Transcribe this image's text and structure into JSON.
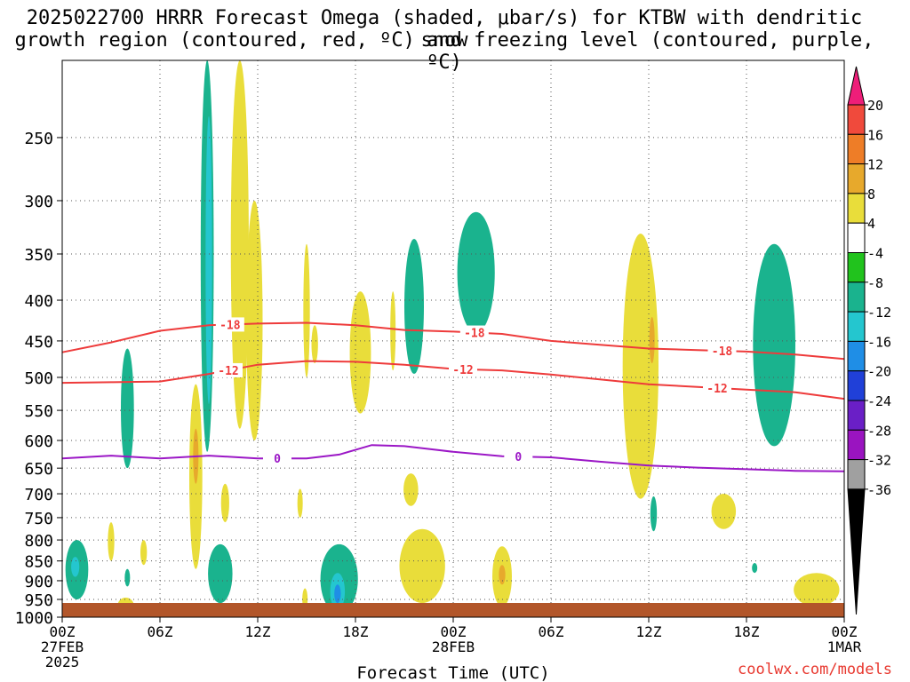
{
  "chart_data": {
    "type": "heatmap",
    "title_line1": "2025022700 HRRR Forecast Omega (shaded, μbar/s) for KTBW with dendritic snow",
    "title_line2": "growth region (contoured, red, ºC) and freezing level (contoured, purple, ºC)",
    "xlabel": "Forecast Time (UTC)",
    "credit": "coolwx.com/models",
    "x_range_hours": [
      0,
      48
    ],
    "y_pressure_range": [
      1000,
      200
    ],
    "y_ticks": [
      250,
      300,
      350,
      400,
      450,
      500,
      550,
      600,
      650,
      700,
      750,
      800,
      850,
      900,
      950,
      1000
    ],
    "x_ticks": [
      {
        "hour": 0,
        "lines": [
          "00Z",
          "27FEB",
          "2025"
        ]
      },
      {
        "hour": 6,
        "lines": [
          "06Z"
        ]
      },
      {
        "hour": 12,
        "lines": [
          "12Z"
        ]
      },
      {
        "hour": 18,
        "lines": [
          "18Z"
        ]
      },
      {
        "hour": 24,
        "lines": [
          "00Z",
          "28FEB"
        ]
      },
      {
        "hour": 30,
        "lines": [
          "06Z"
        ]
      },
      {
        "hour": 36,
        "lines": [
          "12Z"
        ]
      },
      {
        "hour": 42,
        "lines": [
          "18Z"
        ]
      },
      {
        "hour": 48,
        "lines": [
          "00Z",
          "1MAR"
        ]
      }
    ],
    "colorbar": {
      "labels": [
        "20",
        "16",
        "12",
        "8",
        "4",
        "-4",
        "-8",
        "-12",
        "-16",
        "-20",
        "-24",
        "-28",
        "-32",
        "-36"
      ],
      "colors": [
        "#ee1e79",
        "#f04a3c",
        "#ee7d27",
        "#e7a92c",
        "#e9dd3a",
        "#ffffff",
        "#21c31d",
        "#1ab38e",
        "#24c6cf",
        "#1f8ee6",
        "#2040d8",
        "#6a1fc6",
        "#9a14c0",
        "#a0a0a0",
        "#000000"
      ]
    },
    "contours": [
      {
        "label": "-18",
        "color": "#ee3b3b",
        "points": [
          [
            0,
            465
          ],
          [
            3,
            452
          ],
          [
            6,
            437
          ],
          [
            9,
            430
          ],
          [
            12,
            428
          ],
          [
            15,
            427
          ],
          [
            18,
            430
          ],
          [
            21,
            436
          ],
          [
            24,
            438
          ],
          [
            27,
            441
          ],
          [
            30,
            450
          ],
          [
            33,
            455
          ],
          [
            36,
            460
          ],
          [
            39,
            462
          ],
          [
            42,
            464
          ],
          [
            45,
            468
          ],
          [
            48,
            474
          ]
        ]
      },
      {
        "label": "-12",
        "color": "#ee3b3b",
        "points": [
          [
            0,
            508
          ],
          [
            3,
            507
          ],
          [
            6,
            506
          ],
          [
            9,
            495
          ],
          [
            12,
            482
          ],
          [
            15,
            477
          ],
          [
            18,
            478
          ],
          [
            21,
            482
          ],
          [
            24,
            488
          ],
          [
            27,
            490
          ],
          [
            30,
            496
          ],
          [
            33,
            503
          ],
          [
            36,
            510
          ],
          [
            39,
            514
          ],
          [
            42,
            518
          ],
          [
            45,
            522
          ],
          [
            48,
            532
          ]
        ]
      },
      {
        "label": "0",
        "color": "#9b17c6",
        "points": [
          [
            0,
            632
          ],
          [
            3,
            627
          ],
          [
            6,
            632
          ],
          [
            9,
            627
          ],
          [
            12,
            632
          ],
          [
            15,
            632
          ],
          [
            17,
            625
          ],
          [
            19,
            608
          ],
          [
            21,
            610
          ],
          [
            24,
            620
          ],
          [
            27,
            628
          ],
          [
            30,
            630
          ],
          [
            33,
            638
          ],
          [
            36,
            645
          ],
          [
            39,
            649
          ],
          [
            42,
            652
          ],
          [
            45,
            655
          ],
          [
            48,
            656
          ]
        ]
      }
    ],
    "contour_label_positions": [
      {
        "label": "-18",
        "hour": 10.3
      },
      {
        "label": "-18",
        "hour": 25.3
      },
      {
        "label": "-18",
        "hour": 40.5
      },
      {
        "label": "-12",
        "hour": 10.2
      },
      {
        "label": "-12",
        "hour": 24.6
      },
      {
        "label": "-12",
        "hour": 40.2
      },
      {
        "label": "0",
        "hour": 13.2
      },
      {
        "label": "0",
        "hour": 28.0
      }
    ],
    "omega_blobs": [
      {
        "value": 6,
        "hour": 10.9,
        "top_hpa": 200,
        "bottom_hpa": 580,
        "w_hours": 1.1
      },
      {
        "value": 6,
        "hour": 11.8,
        "top_hpa": 300,
        "bottom_hpa": 600,
        "w_hours": 1.0
      },
      {
        "value": -8,
        "hour": 8.9,
        "top_hpa": 200,
        "bottom_hpa": 620,
        "w_hours": 0.8
      },
      {
        "value": -12,
        "hour": 9.0,
        "top_hpa": 235,
        "bottom_hpa": 540,
        "w_hours": 0.4
      },
      {
        "value": 6,
        "hour": 8.2,
        "top_hpa": 510,
        "bottom_hpa": 870,
        "w_hours": 0.8
      },
      {
        "value": 10,
        "hour": 8.2,
        "top_hpa": 580,
        "bottom_hpa": 680,
        "w_hours": 0.3
      },
      {
        "value": 6,
        "hour": 10.0,
        "top_hpa": 680,
        "bottom_hpa": 760,
        "w_hours": 0.5
      },
      {
        "value": -8,
        "hour": 4.0,
        "top_hpa": 460,
        "bottom_hpa": 650,
        "w_hours": 0.8
      },
      {
        "value": -8,
        "hour": 0.9,
        "top_hpa": 800,
        "bottom_hpa": 950,
        "w_hours": 1.4
      },
      {
        "value": -12,
        "hour": 0.8,
        "top_hpa": 840,
        "bottom_hpa": 890,
        "w_hours": 0.5
      },
      {
        "value": 6,
        "hour": 3.0,
        "top_hpa": 760,
        "bottom_hpa": 850,
        "w_hours": 0.4
      },
      {
        "value": 6,
        "hour": 5.0,
        "top_hpa": 800,
        "bottom_hpa": 860,
        "w_hours": 0.4
      },
      {
        "value": 6,
        "hour": 3.9,
        "top_hpa": 945,
        "bottom_hpa": 990,
        "w_hours": 1.0
      },
      {
        "value": -8,
        "hour": 4.0,
        "top_hpa": 870,
        "bottom_hpa": 915,
        "w_hours": 0.3
      },
      {
        "value": -8,
        "hour": 9.7,
        "top_hpa": 810,
        "bottom_hpa": 960,
        "w_hours": 1.5
      },
      {
        "value": 6,
        "hour": 15.0,
        "top_hpa": 340,
        "bottom_hpa": 500,
        "w_hours": 0.4
      },
      {
        "value": 6,
        "hour": 15.5,
        "top_hpa": 430,
        "bottom_hpa": 480,
        "w_hours": 0.4
      },
      {
        "value": 6,
        "hour": 14.6,
        "top_hpa": 690,
        "bottom_hpa": 750,
        "w_hours": 0.3
      },
      {
        "value": 6,
        "hour": 14.9,
        "top_hpa": 920,
        "bottom_hpa": 980,
        "w_hours": 0.3
      },
      {
        "value": 6,
        "hour": 18.3,
        "top_hpa": 390,
        "bottom_hpa": 555,
        "w_hours": 1.3
      },
      {
        "value": 6,
        "hour": 20.3,
        "top_hpa": 390,
        "bottom_hpa": 490,
        "w_hours": 0.3
      },
      {
        "value": -8,
        "hour": 17.0,
        "top_hpa": 810,
        "bottom_hpa": 990,
        "w_hours": 2.3
      },
      {
        "value": -12,
        "hour": 16.9,
        "top_hpa": 880,
        "bottom_hpa": 980,
        "w_hours": 0.9
      },
      {
        "value": -16,
        "hour": 16.9,
        "top_hpa": 910,
        "bottom_hpa": 960,
        "w_hours": 0.4
      },
      {
        "value": 6,
        "hour": 22.1,
        "top_hpa": 775,
        "bottom_hpa": 960,
        "w_hours": 2.8
      },
      {
        "value": -8,
        "hour": 21.6,
        "top_hpa": 335,
        "bottom_hpa": 495,
        "w_hours": 1.2
      },
      {
        "value": 6,
        "hour": 21.4,
        "top_hpa": 660,
        "bottom_hpa": 725,
        "w_hours": 0.9
      },
      {
        "value": -8,
        "hour": 25.4,
        "top_hpa": 310,
        "bottom_hpa": 440,
        "w_hours": 2.3
      },
      {
        "value": 6,
        "hour": 27.0,
        "top_hpa": 815,
        "bottom_hpa": 970,
        "w_hours": 1.2
      },
      {
        "value": 10,
        "hour": 27.0,
        "top_hpa": 860,
        "bottom_hpa": 910,
        "w_hours": 0.4
      },
      {
        "value": 6,
        "hour": 35.5,
        "top_hpa": 330,
        "bottom_hpa": 710,
        "w_hours": 2.2
      },
      {
        "value": 10,
        "hour": 36.2,
        "top_hpa": 420,
        "bottom_hpa": 480,
        "w_hours": 0.3
      },
      {
        "value": -8,
        "hour": 36.3,
        "top_hpa": 705,
        "bottom_hpa": 780,
        "w_hours": 0.4
      },
      {
        "value": 6,
        "hour": 40.6,
        "top_hpa": 700,
        "bottom_hpa": 775,
        "w_hours": 1.5
      },
      {
        "value": -8,
        "hour": 43.7,
        "top_hpa": 340,
        "bottom_hpa": 610,
        "w_hours": 2.6
      },
      {
        "value": -8,
        "hour": 42.5,
        "top_hpa": 855,
        "bottom_hpa": 880,
        "w_hours": 0.2
      },
      {
        "value": 6,
        "hour": 46.3,
        "top_hpa": 880,
        "bottom_hpa": 970,
        "w_hours": 2.8
      }
    ],
    "ground_color": "#b2562a"
  }
}
